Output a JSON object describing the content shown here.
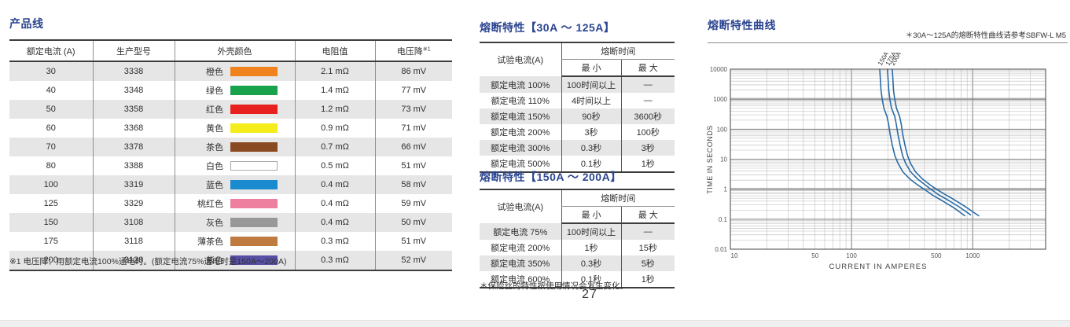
{
  "page": {
    "number": "27"
  },
  "colors": {
    "title": "#2b4590",
    "curve": "#2a6ba6",
    "row_alt": "#e6e6e6",
    "border_dark": "#3d3d3d"
  },
  "product_line": {
    "title": "产品线",
    "headers": [
      "额定电流 (A)",
      "生产型号",
      "外壳颜色",
      "电阻值",
      "电压降"
    ],
    "voltage_drop_sup": "※1",
    "rows": [
      {
        "current": "30",
        "model": "3338",
        "color_name": "橙色",
        "color_hex": "#f0831e",
        "resistance": "2.1 mΩ",
        "voltage_drop": "86 mV"
      },
      {
        "current": "40",
        "model": "3348",
        "color_name": "绿色",
        "color_hex": "#18a24b",
        "resistance": "1.4 mΩ",
        "voltage_drop": "77 mV"
      },
      {
        "current": "50",
        "model": "3358",
        "color_name": "红色",
        "color_hex": "#e7211f",
        "resistance": "1.2 mΩ",
        "voltage_drop": "73 mV"
      },
      {
        "current": "60",
        "model": "3368",
        "color_name": "黄色",
        "color_hex": "#f5ec1b",
        "resistance": "0.9 mΩ",
        "voltage_drop": "71 mV"
      },
      {
        "current": "70",
        "model": "3378",
        "color_name": "茶色",
        "color_hex": "#8a4a21",
        "resistance": "0.7 mΩ",
        "voltage_drop": "66 mV"
      },
      {
        "current": "80",
        "model": "3388",
        "color_name": "白色",
        "color_hex": "#ffffff",
        "resistance": "0.5 mΩ",
        "voltage_drop": "51 mV"
      },
      {
        "current": "100",
        "model": "3319",
        "color_name": "蓝色",
        "color_hex": "#1b8bd0",
        "resistance": "0.4 mΩ",
        "voltage_drop": "58 mV"
      },
      {
        "current": "125",
        "model": "3329",
        "color_name": "桃红色",
        "color_hex": "#ef7f9f",
        "resistance": "0.4 mΩ",
        "voltage_drop": "59 mV"
      },
      {
        "current": "150",
        "model": "3108",
        "color_name": "灰色",
        "color_hex": "#989898",
        "resistance": "0.4 mΩ",
        "voltage_drop": "50 mV"
      },
      {
        "current": "175",
        "model": "3118",
        "color_name": "薄茶色",
        "color_hex": "#bf7a3f",
        "resistance": "0.3 mΩ",
        "voltage_drop": "51 mV"
      },
      {
        "current": "200",
        "model": "3128",
        "color_name": "紫色",
        "color_hex": "#564fa5",
        "resistance": "0.3 mΩ",
        "voltage_drop": "52 mV"
      }
    ],
    "footnote": "※1 电压降：用额定电流100%通电时。(额定电流75%通电时是150A～200A)"
  },
  "fusing_tables": [
    {
      "title": "熔断特性【30A ～ 125A】",
      "col_test_current": "试验电流(A)",
      "col_melt_time": "熔断时间",
      "col_min": "最 小",
      "col_max": "最 大",
      "rows": [
        {
          "test": "额定电流 100%",
          "min": "100时间以上",
          "max": "—"
        },
        {
          "test": "额定电流 110%",
          "min": "4时间以上",
          "max": "—"
        },
        {
          "test": "额定电流 150%",
          "min": "90秒",
          "max": "3600秒"
        },
        {
          "test": "额定电流 200%",
          "min": "3秒",
          "max": "100秒"
        },
        {
          "test": "额定电流 300%",
          "min": "0.3秒",
          "max": "3秒"
        },
        {
          "test": "额定电流 500%",
          "min": "0.1秒",
          "max": "1秒"
        }
      ]
    },
    {
      "title": "熔断特性【150A ～ 200A】",
      "col_test_current": "试验电流(A)",
      "col_melt_time": "熔断时间",
      "col_min": "最 小",
      "col_max": "最 大",
      "rows": [
        {
          "test": "额定电流 75%",
          "min": "100时间以上",
          "max": "—"
        },
        {
          "test": "额定电流 200%",
          "min": "1秒",
          "max": "15秒"
        },
        {
          "test": "额定电流 350%",
          "min": "0.3秒",
          "max": "5秒"
        },
        {
          "test": "额定电流 600%",
          "min": "0.1秒",
          "max": "1秒"
        }
      ]
    }
  ],
  "fusing_tables_note": "＊保险丝的特性按使用情况会发生变化。",
  "chart_section": {
    "title": "熔断特性曲线",
    "note": "＊30A～125A的熔断特性曲线请参考SBFW-L M5"
  },
  "chart_data": {
    "type": "line",
    "title": "熔断特性曲线",
    "xlabel": "CURRENT IN AMPERES",
    "ylabel": "TIME IN SECONDS",
    "x_scale": "log",
    "y_scale": "log",
    "xlim": [
      10,
      4000
    ],
    "ylim": [
      0.01,
      10000
    ],
    "x_ticks": [
      10,
      50,
      100,
      500,
      1000
    ],
    "y_ticks": [
      0.01,
      0.1,
      1,
      10,
      100,
      1000,
      10000
    ],
    "grid": "full log-log minor grid, emphasized lines at y=1000 and y=1",
    "legend_position": "curve labels rotated above curves",
    "series": [
      {
        "name": "150A",
        "points": [
          [
            171,
            10000
          ],
          [
            175,
            2000
          ],
          [
            179,
            1000
          ],
          [
            185,
            500
          ],
          [
            196,
            270
          ],
          [
            202,
            150
          ],
          [
            208,
            70
          ],
          [
            217,
            29
          ],
          [
            228,
            13
          ],
          [
            242,
            7.2
          ],
          [
            265,
            3.8
          ],
          [
            302,
            2.2
          ],
          [
            350,
            1.4
          ],
          [
            408,
            0.93
          ],
          [
            470,
            0.62
          ],
          [
            552,
            0.43
          ],
          [
            700,
            0.24
          ],
          [
            861,
            0.13
          ]
        ]
      },
      {
        "name": "175A",
        "points": [
          [
            198,
            10000
          ],
          [
            203,
            2000
          ],
          [
            207,
            1000
          ],
          [
            214,
            500
          ],
          [
            227,
            270
          ],
          [
            234,
            150
          ],
          [
            241,
            70
          ],
          [
            252,
            29
          ],
          [
            264,
            13
          ],
          [
            280,
            7.2
          ],
          [
            307,
            3.8
          ],
          [
            350,
            2.2
          ],
          [
            405,
            1.4
          ],
          [
            458,
            0.95
          ],
          [
            520,
            0.66
          ],
          [
            610,
            0.46
          ],
          [
            770,
            0.26
          ],
          [
            960,
            0.14
          ]
        ]
      },
      {
        "name": "200A",
        "points": [
          [
            217,
            10000
          ],
          [
            222,
            2000
          ],
          [
            227,
            1000
          ],
          [
            235,
            500
          ],
          [
            249,
            270
          ],
          [
            257,
            150
          ],
          [
            264,
            70
          ],
          [
            276,
            29
          ],
          [
            290,
            13
          ],
          [
            307,
            7.2
          ],
          [
            337,
            3.8
          ],
          [
            384,
            2.2
          ],
          [
            444,
            1.4
          ],
          [
            502,
            1.0
          ],
          [
            572,
            0.72
          ],
          [
            672,
            0.5
          ],
          [
            850,
            0.28
          ],
          [
            1120,
            0.13
          ]
        ]
      }
    ]
  }
}
